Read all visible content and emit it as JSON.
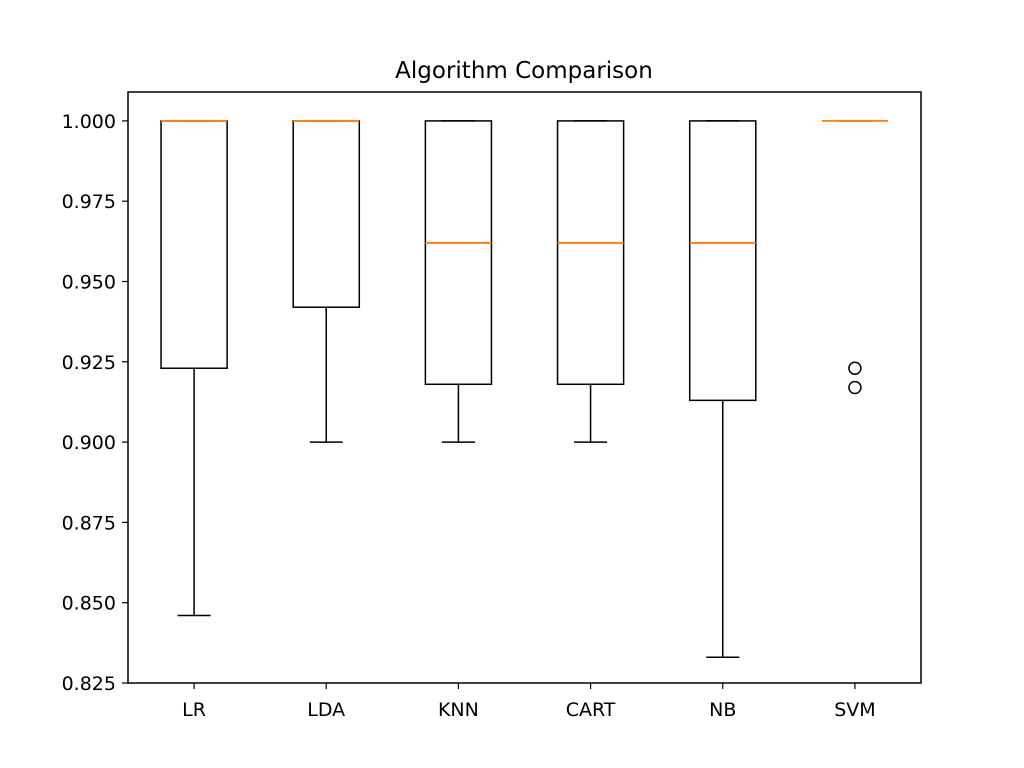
{
  "chart_data": {
    "type": "box",
    "title": "Algorithm Comparison",
    "xlabel": "",
    "ylabel": "",
    "ylim": [
      0.825,
      1.009
    ],
    "yticks": [
      0.825,
      0.85,
      0.875,
      0.9,
      0.925,
      0.95,
      0.975,
      1.0
    ],
    "ytick_labels": [
      "0.825",
      "0.850",
      "0.875",
      "0.900",
      "0.925",
      "0.950",
      "0.975",
      "1.000"
    ],
    "grid": false,
    "categories": [
      "LR",
      "LDA",
      "KNN",
      "CART",
      "NB",
      "SVM"
    ],
    "boxes": [
      {
        "label": "LR",
        "whisker_low": 0.846,
        "q1": 0.923,
        "median": 1.0,
        "q3": 1.0,
        "whisker_high": 1.0,
        "fliers": []
      },
      {
        "label": "LDA",
        "whisker_low": 0.9,
        "q1": 0.942,
        "median": 1.0,
        "q3": 1.0,
        "whisker_high": 1.0,
        "fliers": []
      },
      {
        "label": "KNN",
        "whisker_low": 0.9,
        "q1": 0.918,
        "median": 0.962,
        "q3": 1.0,
        "whisker_high": 1.0,
        "fliers": []
      },
      {
        "label": "CART",
        "whisker_low": 0.9,
        "q1": 0.918,
        "median": 0.962,
        "q3": 1.0,
        "whisker_high": 1.0,
        "fliers": []
      },
      {
        "label": "NB",
        "whisker_low": 0.833,
        "q1": 0.913,
        "median": 0.962,
        "q3": 1.0,
        "whisker_high": 1.0,
        "fliers": []
      },
      {
        "label": "SVM",
        "whisker_low": 1.0,
        "q1": 1.0,
        "median": 1.0,
        "q3": 1.0,
        "whisker_high": 1.0,
        "fliers": [
          0.923,
          0.917
        ]
      }
    ],
    "colors": {
      "box": "#000000",
      "median": "#ff7f0e",
      "flier": "#000000",
      "background": "#ffffff"
    }
  }
}
